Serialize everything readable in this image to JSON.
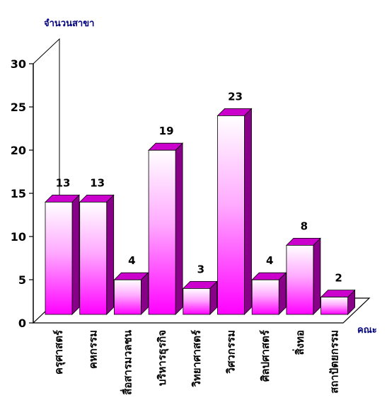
{
  "chart_data": {
    "type": "bar",
    "title": "",
    "ylabel": "จำนวนสาขา",
    "xlabel": "คณะ",
    "categories": [
      "ครุศาสตร์",
      "คหกรรม",
      "สื่อสารมวลชน",
      "บริหารธุรกิจ",
      "วิทยาศาสตร์",
      "วิศวกรรม",
      "ศิลปศาสตร์",
      "สิ่งทอ",
      "สถาปัตยกรรม"
    ],
    "values": [
      13,
      13,
      4,
      19,
      3,
      23,
      4,
      8,
      2
    ],
    "ylim": [
      0,
      30
    ],
    "yticks": [
      0,
      5,
      10,
      15,
      20,
      25,
      30
    ],
    "grid": false,
    "legend": "none"
  },
  "colors": {
    "bar_front_top": "#ffffff",
    "bar_front_bottom": "#ff00ff",
    "bar_top_face": "#cc00cc",
    "bar_side_face": "#880088",
    "axis": "#000000",
    "axis_title": "#000080"
  }
}
